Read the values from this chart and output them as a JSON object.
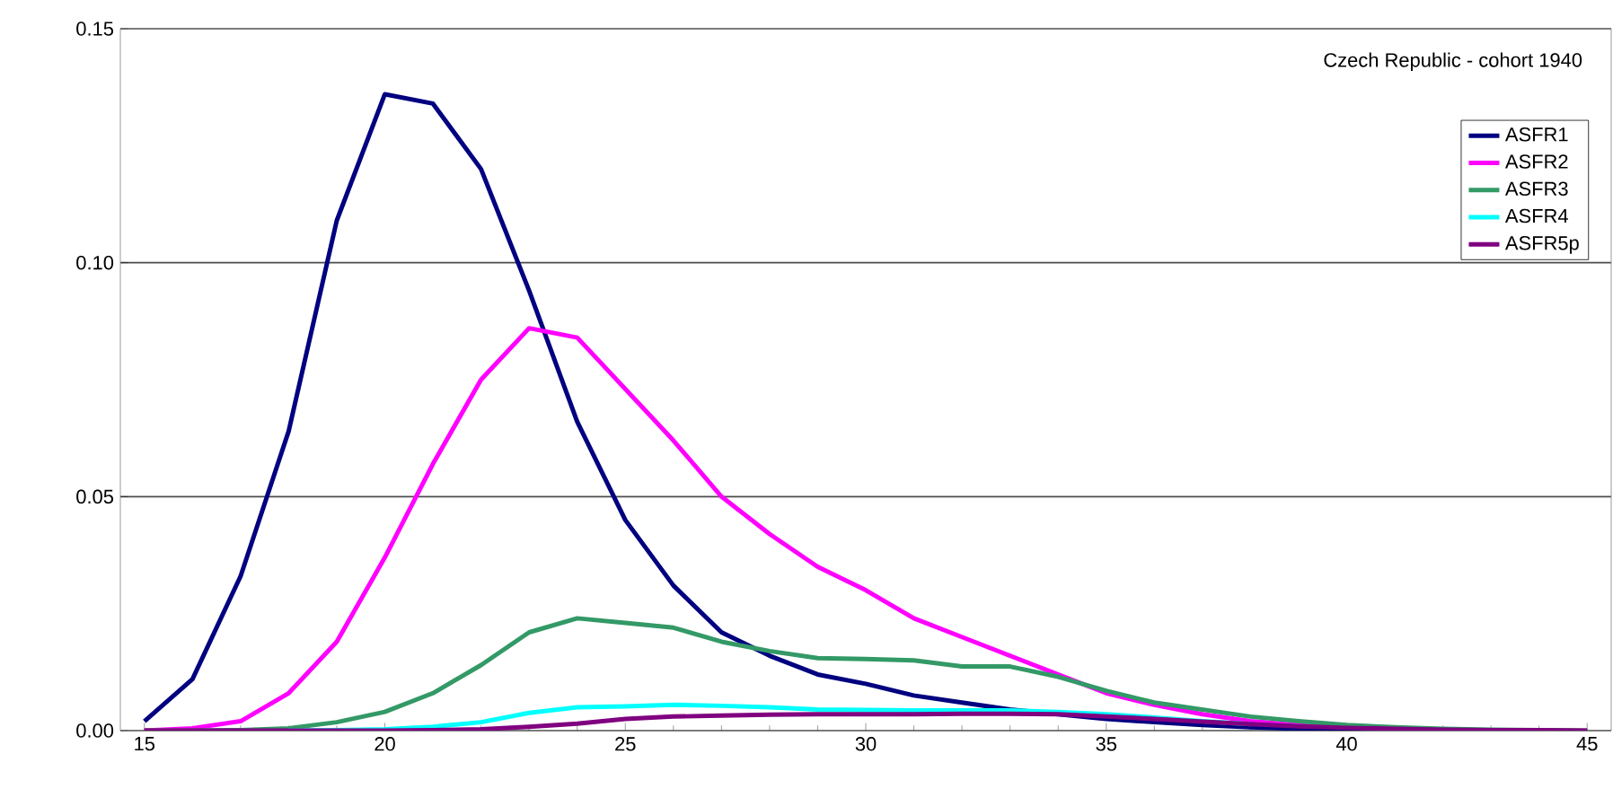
{
  "chart_data": {
    "type": "line",
    "x": [
      15,
      16,
      17,
      18,
      19,
      20,
      21,
      22,
      23,
      24,
      25,
      26,
      27,
      28,
      29,
      30,
      31,
      32,
      33,
      34,
      35,
      36,
      37,
      38,
      39,
      40,
      41,
      42,
      43,
      44,
      45
    ],
    "series": [
      {
        "name": "ASFR1",
        "color": "#000080",
        "values": [
          0.002,
          0.011,
          0.033,
          0.064,
          0.109,
          0.136,
          0.134,
          0.12,
          0.094,
          0.066,
          0.045,
          0.031,
          0.021,
          0.016,
          0.012,
          0.01,
          0.0075,
          0.006,
          0.0045,
          0.0035,
          0.0025,
          0.0018,
          0.0012,
          0.0007,
          0.0004,
          0.0002,
          0.0001,
          null,
          null,
          null,
          null
        ]
      },
      {
        "name": "ASFR2",
        "color": "#ff00ff",
        "values": [
          0,
          0.0005,
          0.002,
          0.008,
          0.019,
          0.037,
          0.057,
          0.075,
          0.086,
          0.084,
          0.073,
          0.062,
          0.05,
          0.042,
          0.035,
          0.03,
          0.024,
          0.02,
          0.016,
          0.012,
          0.008,
          0.0055,
          0.0035,
          0.002,
          0.0012,
          0.0007,
          null,
          null,
          null,
          null,
          null
        ]
      },
      {
        "name": "ASFR3",
        "color": "#339966",
        "values": [
          0,
          0,
          0.0001,
          0.0005,
          0.0018,
          0.004,
          0.008,
          0.014,
          0.021,
          0.024,
          0.023,
          0.022,
          0.019,
          0.017,
          0.0155,
          0.0153,
          0.015,
          0.0137,
          0.0137,
          0.0115,
          0.0085,
          0.006,
          0.0045,
          0.003,
          0.002,
          0.0012,
          0.0007,
          0.0004,
          0.0002,
          0.0001,
          0
        ]
      },
      {
        "name": "ASFR4",
        "color": "#00ffff",
        "values": [
          null,
          null,
          null,
          0,
          0.0001,
          0.0003,
          0.0008,
          0.0018,
          0.0038,
          0.005,
          0.0052,
          0.0055,
          0.0053,
          0.005,
          0.0045,
          0.0044,
          0.0043,
          0.0043,
          0.0043,
          0.004,
          0.0035,
          0.0028,
          0.002,
          0.0014,
          null,
          null,
          null,
          null,
          null,
          null,
          null
        ]
      },
      {
        "name": "ASFR5p",
        "color": "#800080",
        "values": [
          0,
          0,
          0,
          0,
          0,
          0,
          0.0001,
          0.0003,
          0.0008,
          0.0015,
          0.0025,
          0.003,
          0.0032,
          0.0034,
          0.0035,
          0.0035,
          0.0035,
          0.0036,
          0.0036,
          0.0035,
          0.003,
          0.0025,
          0.0019,
          0.0014,
          0.0009,
          0.0006,
          0.0004,
          0.0002,
          0.0001,
          0.0001,
          0
        ]
      }
    ],
    "xlim": [
      14.5,
      45.5
    ],
    "xticks": [
      15,
      20,
      25,
      30,
      35,
      40,
      45
    ],
    "ylim": [
      0,
      0.15
    ],
    "yticks": [
      {
        "value": 0,
        "label": "0.00"
      },
      {
        "value": 0.05,
        "label": "0.05"
      },
      {
        "value": 0.1,
        "label": "0.10"
      },
      {
        "value": 0.15,
        "label": "0.15"
      }
    ],
    "annotations": [
      "Czech Republic - cohort 1940"
    ],
    "grid": "y",
    "legend": "top right",
    "marker": "none",
    "line_style": "solid"
  }
}
